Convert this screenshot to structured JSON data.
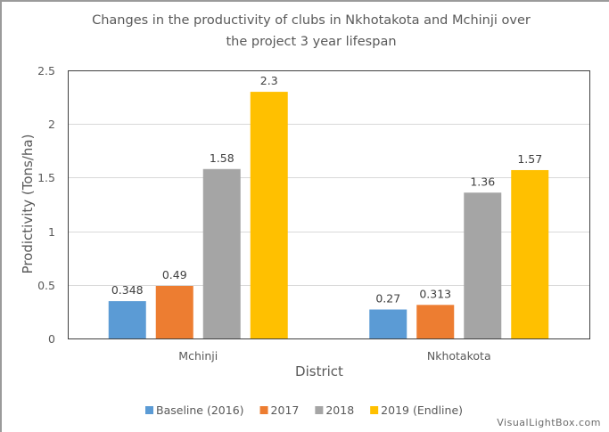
{
  "chart_data": {
    "type": "bar",
    "title_lines": [
      "Changes in the productivity of clubs in Nkhotakota and Mchinji over",
      "the project 3 year lifespan"
    ],
    "xlabel": "District",
    "ylabel": "Prodictivity (Tons/ha)",
    "ylim": [
      0,
      2.5
    ],
    "yticks": [
      0,
      0.5,
      1,
      1.5,
      2,
      2.5
    ],
    "ytick_labels": [
      "0",
      "0.5",
      "1",
      "1.5",
      "2",
      "2.5"
    ],
    "grid": true,
    "categories": [
      "Mchinji",
      "Nkhotakota"
    ],
    "series": [
      {
        "name": "Baseline (2016)",
        "color": "#5b9bd5",
        "values": [
          0.348,
          0.27
        ],
        "labels": [
          "0.348",
          "0.27"
        ]
      },
      {
        "name": "2017",
        "color": "#ed7d31",
        "values": [
          0.49,
          0.313
        ],
        "labels": [
          "0.49",
          "0.313"
        ]
      },
      {
        "name": "2018",
        "color": "#a5a5a5",
        "values": [
          1.58,
          1.36
        ],
        "labels": [
          "1.58",
          "1.36"
        ]
      },
      {
        "name": "2019 (Endline)",
        "color": "#ffc000",
        "values": [
          2.3,
          1.57
        ],
        "labels": [
          "2.3",
          "1.57"
        ]
      }
    ],
    "legend_position": "bottom"
  },
  "watermark": "VisualLightBox.com"
}
